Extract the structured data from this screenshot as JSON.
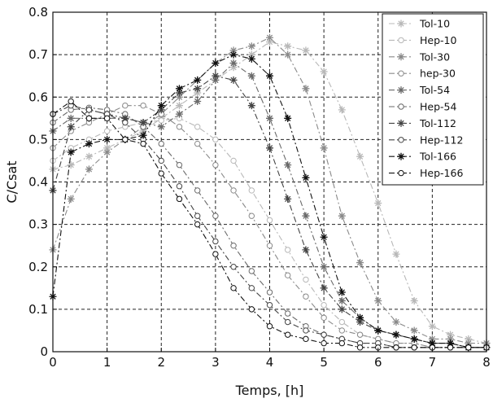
{
  "chart_data": {
    "type": "line",
    "title": "",
    "xlabel": "Temps, [h]",
    "ylabel": "C/Csat",
    "xlim": [
      0,
      8
    ],
    "ylim": [
      0,
      0.8
    ],
    "xticks": [
      "0",
      "1",
      "2",
      "3",
      "4",
      "5",
      "6",
      "7",
      "8"
    ],
    "yticks": [
      "0",
      "0.1",
      "0.2",
      "0.3",
      "0.4",
      "0.5",
      "0.6",
      "0.7",
      "0.8"
    ],
    "grid": true,
    "legend_position": "top-right",
    "x": [
      0,
      0.333,
      0.667,
      1,
      1.333,
      1.667,
      2,
      2.333,
      2.667,
      3,
      3.333,
      3.667,
      4,
      4.333,
      4.667,
      5,
      5.333,
      5.667,
      6,
      6.333,
      6.667,
      7,
      7.333,
      7.667,
      8
    ],
    "series": [
      {
        "name": "Tol-10",
        "marker": "star",
        "color": "#b8b8b8",
        "values": [
          0.43,
          0.44,
          0.46,
          0.48,
          0.5,
          0.52,
          0.55,
          0.58,
          0.61,
          0.64,
          0.67,
          0.7,
          0.73,
          0.72,
          0.71,
          0.66,
          0.57,
          0.46,
          0.35,
          0.23,
          0.12,
          0.06,
          0.04,
          0.03,
          0.02
        ]
      },
      {
        "name": "Hep-10",
        "marker": "circle",
        "color": "#b8b8b8",
        "values": [
          0.45,
          0.48,
          0.5,
          0.52,
          0.53,
          0.54,
          0.545,
          0.55,
          0.53,
          0.5,
          0.45,
          0.38,
          0.31,
          0.24,
          0.17,
          0.11,
          0.07,
          0.04,
          0.03,
          0.02,
          0.02,
          0.01,
          0.01,
          0.01,
          0.01
        ]
      },
      {
        "name": "Tol-30",
        "marker": "star",
        "color": "#8a8a8a",
        "values": [
          0.24,
          0.36,
          0.43,
          0.47,
          0.5,
          0.53,
          0.56,
          0.6,
          0.64,
          0.68,
          0.71,
          0.72,
          0.74,
          0.7,
          0.62,
          0.48,
          0.32,
          0.21,
          0.12,
          0.07,
          0.05,
          0.03,
          0.03,
          0.02,
          0.02
        ]
      },
      {
        "name": "hep-30",
        "marker": "circle",
        "color": "#8a8a8a",
        "values": [
          0.48,
          0.52,
          0.54,
          0.56,
          0.58,
          0.58,
          0.56,
          0.53,
          0.49,
          0.44,
          0.38,
          0.32,
          0.25,
          0.18,
          0.13,
          0.08,
          0.05,
          0.04,
          0.03,
          0.02,
          0.02,
          0.01,
          0.01,
          0.01,
          0.01
        ]
      },
      {
        "name": "Tol-54",
        "marker": "star",
        "color": "#6a6a6a",
        "values": [
          0.52,
          0.55,
          0.55,
          0.55,
          0.55,
          0.54,
          0.53,
          0.56,
          0.59,
          0.64,
          0.68,
          0.65,
          0.55,
          0.44,
          0.32,
          0.2,
          0.12,
          0.08,
          0.05,
          0.04,
          0.03,
          0.02,
          0.02,
          0.01,
          0.01
        ]
      },
      {
        "name": "Hep-54",
        "marker": "circle",
        "color": "#6a6a6a",
        "values": [
          0.54,
          0.57,
          0.575,
          0.57,
          0.56,
          0.53,
          0.49,
          0.44,
          0.38,
          0.32,
          0.25,
          0.19,
          0.14,
          0.09,
          0.06,
          0.04,
          0.03,
          0.02,
          0.02,
          0.01,
          0.01,
          0.01,
          0.01,
          0.01,
          0.01
        ]
      },
      {
        "name": "Tol-112",
        "marker": "star",
        "color": "#444444",
        "values": [
          0.38,
          0.53,
          0.57,
          0.56,
          0.55,
          0.54,
          0.57,
          0.61,
          0.62,
          0.65,
          0.64,
          0.58,
          0.48,
          0.36,
          0.24,
          0.15,
          0.1,
          0.07,
          0.05,
          0.04,
          0.03,
          0.02,
          0.02,
          0.01,
          0.01
        ]
      },
      {
        "name": "Hep-112",
        "marker": "circle",
        "color": "#444444",
        "values": [
          0.56,
          0.58,
          0.57,
          0.56,
          0.54,
          0.5,
          0.45,
          0.39,
          0.32,
          0.26,
          0.2,
          0.15,
          0.11,
          0.07,
          0.05,
          0.04,
          0.03,
          0.02,
          0.02,
          0.01,
          0.01,
          0.01,
          0.01,
          0.01,
          0.01
        ]
      },
      {
        "name": "Tol-166",
        "marker": "star",
        "color": "#111111",
        "values": [
          0.13,
          0.47,
          0.49,
          0.5,
          0.5,
          0.51,
          0.58,
          0.62,
          0.64,
          0.68,
          0.7,
          0.69,
          0.65,
          0.55,
          0.41,
          0.27,
          0.14,
          0.08,
          0.05,
          0.04,
          0.03,
          0.02,
          0.02,
          0.01,
          0.01
        ]
      },
      {
        "name": "Hep-166",
        "marker": "circle",
        "color": "#111111",
        "values": [
          0.56,
          0.59,
          0.55,
          0.55,
          0.5,
          0.49,
          0.42,
          0.36,
          0.3,
          0.23,
          0.15,
          0.1,
          0.06,
          0.04,
          0.03,
          0.02,
          0.02,
          0.01,
          0.01,
          0.01,
          0.01,
          0.01,
          0.01,
          0.01,
          0.01
        ]
      }
    ]
  }
}
